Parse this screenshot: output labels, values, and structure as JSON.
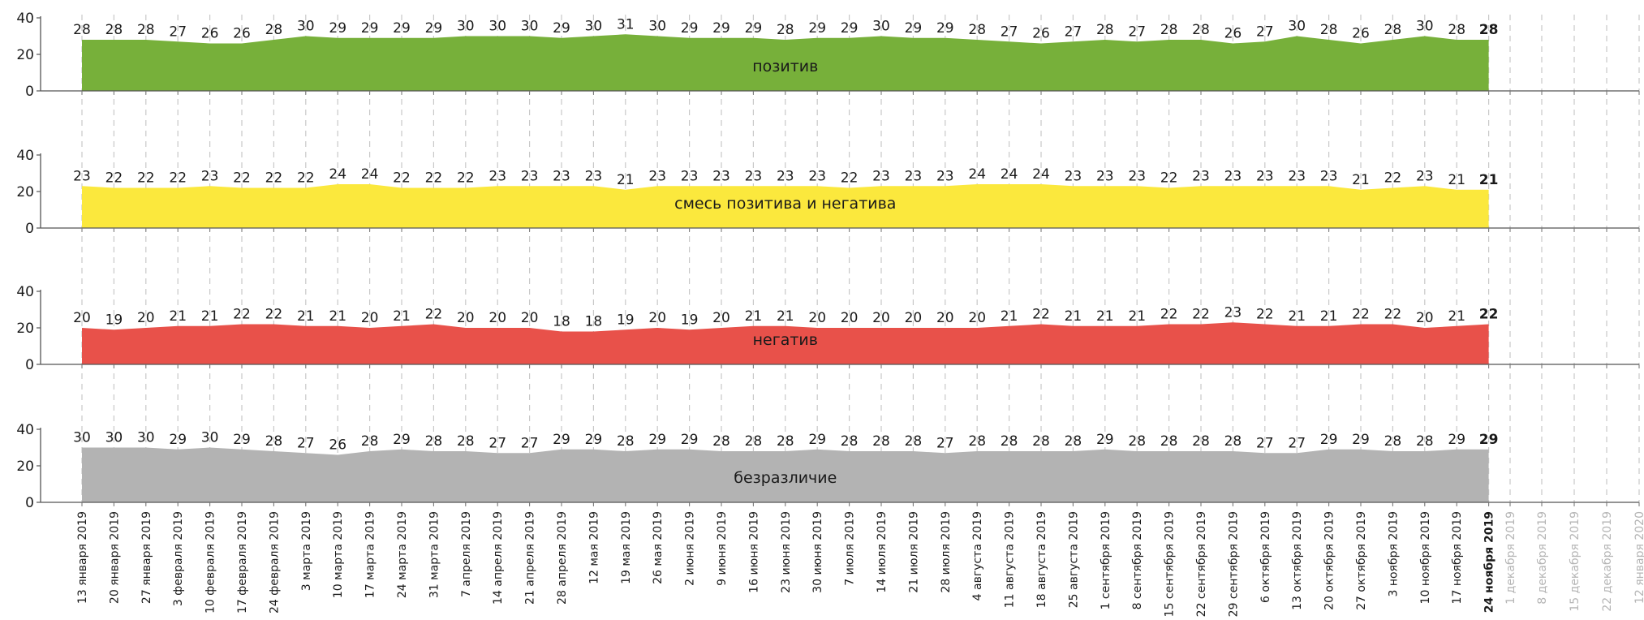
{
  "chart_data": {
    "type": "area",
    "layout": "small-multiples",
    "grid": "vertical dashed",
    "y_ticks": [
      0,
      20,
      40
    ],
    "ylim": [
      0,
      40
    ],
    "categories": [
      "13 января 2019",
      "20 января 2019",
      "27 января 2019",
      "3 февраля 2019",
      "10 февраля 2019",
      "17 февраля 2019",
      "24 февраля 2019",
      "3 марта 2019",
      "10 марта 2019",
      "17 марта 2019",
      "24 марта 2019",
      "31 марта 2019",
      "7 апреля 2019",
      "14 апреля 2019",
      "21 апреля 2019",
      "28 апреля 2019",
      "12 мая 2019",
      "19 мая 2019",
      "26 мая 2019",
      "2 июня 2019",
      "9 июня 2019",
      "16 июня 2019",
      "23 июня 2019",
      "30 июня 2019",
      "7 июля 2019",
      "14 июля 2019",
      "21 июля 2019",
      "28 июля 2019",
      "4 августа 2019",
      "11 августа 2019",
      "18 августа 2019",
      "25 августа 2019",
      "1 сентября 2019",
      "8 сентября 2019",
      "15 сентября 2019",
      "22 сентября 2019",
      "29 сентября 2019",
      "6 октября 2019",
      "13 октября 2019",
      "20 октября 2019",
      "27 октября 2019",
      "3 ноября 2019",
      "10 ноября 2019",
      "17 ноября 2019",
      "24 ноября 2019"
    ],
    "future_categories": [
      "1 декабря 2019",
      "8 декабря 2019",
      "15 декабря 2019",
      "22 декабря 2019",
      "12 января 2020"
    ],
    "series": [
      {
        "name": "позитив",
        "color": "#77b03a",
        "values": [
          28,
          28,
          28,
          27,
          26,
          26,
          28,
          30,
          29,
          29,
          29,
          29,
          30,
          30,
          30,
          29,
          30,
          31,
          30,
          29,
          29,
          29,
          28,
          29,
          29,
          30,
          29,
          29,
          28,
          27,
          26,
          27,
          28,
          27,
          28,
          28,
          26,
          27,
          30,
          28,
          26,
          28,
          30,
          28,
          28
        ]
      },
      {
        "name": "смесь позитива и негатива",
        "color": "#fbe83d",
        "values": [
          23,
          22,
          22,
          22,
          23,
          22,
          22,
          22,
          24,
          24,
          22,
          22,
          22,
          23,
          23,
          23,
          23,
          21,
          23,
          23,
          23,
          23,
          23,
          23,
          22,
          23,
          23,
          23,
          24,
          24,
          24,
          23,
          23,
          23,
          22,
          23,
          23,
          23,
          23,
          23,
          21,
          22,
          23,
          21,
          21
        ]
      },
      {
        "name": "негатив",
        "color": "#e8514a",
        "values": [
          20,
          19,
          20,
          21,
          21,
          22,
          22,
          21,
          21,
          20,
          21,
          22,
          20,
          20,
          20,
          18,
          18,
          19,
          20,
          19,
          20,
          21,
          21,
          20,
          20,
          20,
          20,
          20,
          20,
          21,
          22,
          21,
          21,
          21,
          22,
          22,
          23,
          22,
          21,
          21,
          22,
          22,
          20,
          21,
          22
        ]
      },
      {
        "name": "безразличие",
        "color": "#b3b3b3",
        "values": [
          30,
          30,
          30,
          29,
          30,
          29,
          28,
          27,
          26,
          28,
          29,
          28,
          28,
          27,
          27,
          29,
          29,
          28,
          29,
          29,
          28,
          28,
          28,
          29,
          28,
          28,
          28,
          27,
          28,
          28,
          28,
          28,
          29,
          28,
          28,
          28,
          28,
          27,
          27,
          29,
          29,
          28,
          28,
          29,
          29
        ]
      }
    ]
  }
}
